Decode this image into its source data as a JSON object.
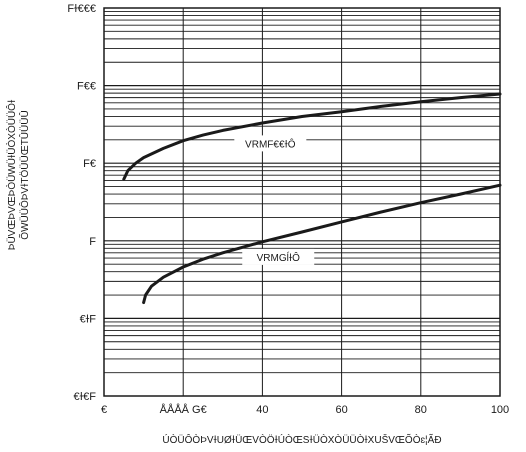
{
  "chart_data": {
    "type": "line",
    "x_tick_labels": [
      "€",
      "ÅÅÅÅ G€",
      "40",
      "60",
      "80",
      "100"
    ],
    "x_tick_values": [
      0,
      20,
      40,
      60,
      80,
      100
    ],
    "xlim": [
      0,
      100
    ],
    "y_tick_labels": [
      "Fɫ€€€",
      "F€€",
      "F€",
      "F",
      "€ɫF",
      "€ɫ€F"
    ],
    "y_tick_values": [
      1000,
      100,
      10,
      1,
      0.1,
      0.01
    ],
    "ylim": [
      0.01,
      1000
    ],
    "y_scale": "log",
    "xlabel": "ÚÒÜÔÒÞVɫUØɫÜŒVÒÖɫÚÒŒSɫÜÒXÒÜÜÒɫXUŠVŒÕÒɛ¦ÃĐ",
    "ylabel_line1": "ÞÜVŒÞVŒÞÒÜWÜɫÜÒXÒÜÜÔɫ",
    "ylabel_line2": "ÕWÜÜÔÞVɫTÖÜÜŒTÛÜÜÛ",
    "grid": true,
    "series": [
      {
        "name": "VRMF€€ɫÔ",
        "x": [
          5,
          6,
          8,
          10,
          15,
          20,
          25,
          30,
          40,
          50,
          60,
          70,
          80,
          90,
          100
        ],
        "y": [
          6.2,
          8.0,
          10.0,
          11.8,
          15.5,
          19.5,
          23,
          26.5,
          33,
          40,
          46,
          54,
          62,
          70,
          78
        ]
      },
      {
        "name": "VRMGĺɫÔ",
        "x": [
          10,
          10.5,
          12,
          15,
          20,
          25,
          30,
          40,
          50,
          60,
          70,
          80,
          90,
          100
        ],
        "y": [
          0.16,
          0.2,
          0.26,
          0.34,
          0.46,
          0.58,
          0.7,
          0.97,
          1.3,
          1.75,
          2.35,
          3.1,
          4.0,
          5.2
        ]
      }
    ]
  }
}
